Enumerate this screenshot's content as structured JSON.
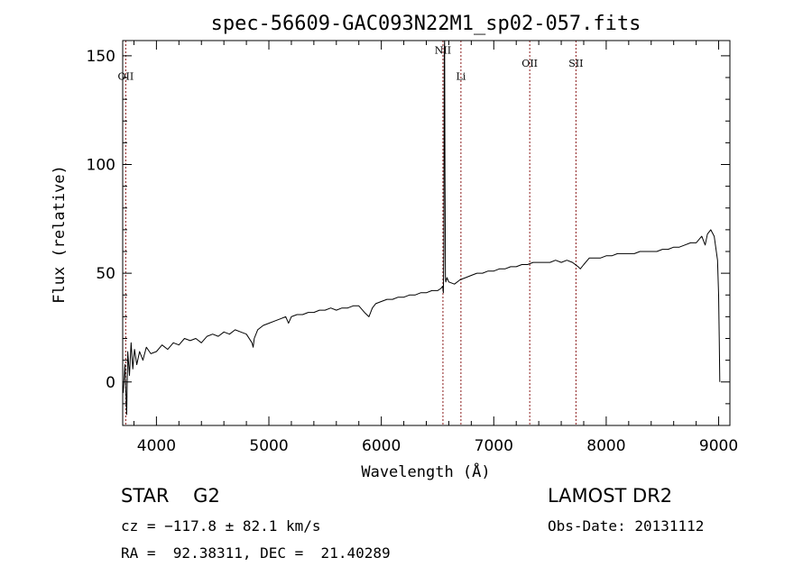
{
  "chart_data": {
    "type": "line",
    "title": "spec-56609-GAC093N22M1_sp02-057.fits",
    "xlabel": "Wavelength (Å)",
    "ylabel": "Flux (relative)",
    "xlim": [
      3700,
      9100
    ],
    "ylim": [
      -20,
      157
    ],
    "x_ticks": [
      4000,
      5000,
      6000,
      7000,
      8000,
      9000
    ],
    "y_ticks": [
      0,
      50,
      100,
      150
    ],
    "grid": false,
    "series": [
      {
        "color": "#000000",
        "points": [
          [
            3705,
            -5
          ],
          [
            3720,
            8
          ],
          [
            3735,
            -15
          ],
          [
            3745,
            14
          ],
          [
            3760,
            3
          ],
          [
            3775,
            18
          ],
          [
            3790,
            6
          ],
          [
            3805,
            15
          ],
          [
            3825,
            8
          ],
          [
            3850,
            14
          ],
          [
            3880,
            10
          ],
          [
            3910,
            16
          ],
          [
            3950,
            13
          ],
          [
            4000,
            14
          ],
          [
            4050,
            17
          ],
          [
            4100,
            15
          ],
          [
            4150,
            18
          ],
          [
            4200,
            17
          ],
          [
            4250,
            20
          ],
          [
            4300,
            19
          ],
          [
            4350,
            20
          ],
          [
            4400,
            18
          ],
          [
            4450,
            21
          ],
          [
            4500,
            22
          ],
          [
            4550,
            21
          ],
          [
            4600,
            23
          ],
          [
            4650,
            22
          ],
          [
            4700,
            24
          ],
          [
            4750,
            23
          ],
          [
            4800,
            22
          ],
          [
            4850,
            18
          ],
          [
            4860,
            16
          ],
          [
            4870,
            20
          ],
          [
            4900,
            24
          ],
          [
            4950,
            26
          ],
          [
            5000,
            27
          ],
          [
            5050,
            28
          ],
          [
            5100,
            29
          ],
          [
            5150,
            30
          ],
          [
            5175,
            27
          ],
          [
            5200,
            30
          ],
          [
            5250,
            31
          ],
          [
            5300,
            31
          ],
          [
            5350,
            32
          ],
          [
            5400,
            32
          ],
          [
            5450,
            33
          ],
          [
            5500,
            33
          ],
          [
            5550,
            34
          ],
          [
            5600,
            33
          ],
          [
            5650,
            34
          ],
          [
            5700,
            34
          ],
          [
            5750,
            35
          ],
          [
            5800,
            35
          ],
          [
            5850,
            32
          ],
          [
            5890,
            30
          ],
          [
            5920,
            34
          ],
          [
            5950,
            36
          ],
          [
            6000,
            37
          ],
          [
            6050,
            38
          ],
          [
            6100,
            38
          ],
          [
            6150,
            39
          ],
          [
            6200,
            39
          ],
          [
            6250,
            40
          ],
          [
            6300,
            40
          ],
          [
            6350,
            41
          ],
          [
            6400,
            41
          ],
          [
            6450,
            42
          ],
          [
            6500,
            42
          ],
          [
            6530,
            43
          ],
          [
            6545,
            44
          ],
          [
            6552,
            41
          ],
          [
            6556,
            60
          ],
          [
            6560,
            152
          ],
          [
            6563,
            160
          ],
          [
            6566,
            95
          ],
          [
            6568,
            80
          ],
          [
            6570,
            48
          ],
          [
            6573,
            46
          ],
          [
            6584,
            48
          ],
          [
            6600,
            46
          ],
          [
            6650,
            45
          ],
          [
            6700,
            47
          ],
          [
            6750,
            48
          ],
          [
            6800,
            49
          ],
          [
            6850,
            50
          ],
          [
            6900,
            50
          ],
          [
            6950,
            51
          ],
          [
            7000,
            51
          ],
          [
            7050,
            52
          ],
          [
            7100,
            52
          ],
          [
            7150,
            53
          ],
          [
            7200,
            53
          ],
          [
            7250,
            54
          ],
          [
            7300,
            54
          ],
          [
            7350,
            55
          ],
          [
            7400,
            55
          ],
          [
            7450,
            55
          ],
          [
            7500,
            55
          ],
          [
            7550,
            56
          ],
          [
            7600,
            55
          ],
          [
            7650,
            56
          ],
          [
            7700,
            55
          ],
          [
            7750,
            53
          ],
          [
            7770,
            52
          ],
          [
            7800,
            54
          ],
          [
            7850,
            57
          ],
          [
            7900,
            57
          ],
          [
            7950,
            57
          ],
          [
            8000,
            58
          ],
          [
            8050,
            58
          ],
          [
            8100,
            59
          ],
          [
            8150,
            59
          ],
          [
            8200,
            59
          ],
          [
            8250,
            59
          ],
          [
            8300,
            60
          ],
          [
            8350,
            60
          ],
          [
            8400,
            60
          ],
          [
            8450,
            60
          ],
          [
            8500,
            61
          ],
          [
            8550,
            61
          ],
          [
            8600,
            62
          ],
          [
            8650,
            62
          ],
          [
            8700,
            63
          ],
          [
            8750,
            64
          ],
          [
            8800,
            64
          ],
          [
            8850,
            67
          ],
          [
            8880,
            63
          ],
          [
            8900,
            68
          ],
          [
            8930,
            70
          ],
          [
            8960,
            67
          ],
          [
            8990,
            56
          ],
          [
            9000,
            40
          ],
          [
            9005,
            20
          ],
          [
            9010,
            0
          ]
        ]
      }
    ],
    "annotations": [
      {
        "label": "OII",
        "x": 3727,
        "label_y": 139
      },
      {
        "label": "NII",
        "x": 6548,
        "label_y": 151
      },
      {
        "label": "Li",
        "x": 6708,
        "label_y": 139
      },
      {
        "label": "OII",
        "x": 7320,
        "label_y": 145
      },
      {
        "label": "SII",
        "x": 7731,
        "label_y": 145
      }
    ],
    "annotation_line_color": "#8b1a1a"
  },
  "info": {
    "class_text": "STAR    G2",
    "survey_text": "LAMOST DR2",
    "cz_text": "cz = −117.8 ± 82.1 km/s",
    "obsdate_text": "Obs-Date: 20131112",
    "radec_text": "RA =  92.38311, DEC =  21.40289"
  }
}
